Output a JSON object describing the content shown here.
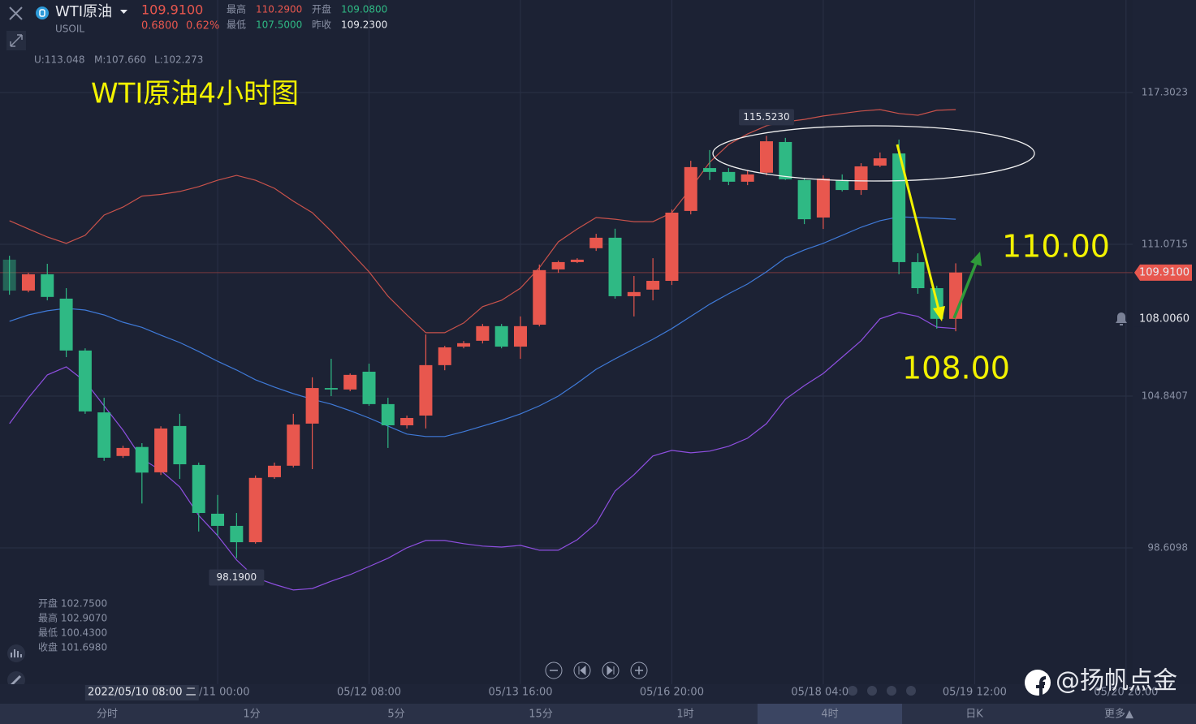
{
  "header": {
    "name": "WTI原油",
    "symbol": "USOIL",
    "price": "109.9100",
    "change": "0.6800",
    "change_pct": "0.62%",
    "stats": [
      [
        "最高",
        "110.2900"
      ],
      [
        "开盘",
        "109.0800"
      ],
      [
        "最低",
        "107.5000"
      ],
      [
        "昨收",
        "109.2300"
      ]
    ]
  },
  "chart_data": {
    "type": "candlestick",
    "title": "WTI原油4小时图",
    "up_color": "#e8574e",
    "down_color": "#2fb984",
    "xlim": [
      -0.5,
      59.35
    ],
    "ylim": [
      93.01,
      121.1
    ],
    "yticks": [
      117.3023,
      111.0715,
      104.8407,
      98.6098
    ],
    "grid": true,
    "xticks": [
      {
        "value": 11,
        "label": "05/11 00:00"
      },
      {
        "value": 19,
        "label": "05/12 08:00"
      },
      {
        "value": 27,
        "label": "05/13 16:00"
      },
      {
        "value": 35,
        "label": "05/16 20:00"
      },
      {
        "value": 43,
        "label": "05/18 04:00"
      },
      {
        "value": 51,
        "label": "05/19 12:00"
      },
      {
        "value": 59,
        "label": "05/20 20:00"
      }
    ],
    "candles": {
      "open": [
        110.44,
        109.17,
        109.84,
        108.84,
        106.71,
        104.17,
        102.38,
        102.75,
        101.71,
        103.61,
        102.01,
        100.01,
        99.51,
        98.84,
        101.51,
        101.98,
        103.71,
        105.17,
        105.11,
        105.84,
        104.51,
        103.64,
        104.04,
        106.11,
        106.87,
        107.11,
        107.71,
        106.87,
        107.77,
        110.04,
        110.34,
        110.91,
        111.34,
        108.94,
        109.21,
        109.57,
        112.44,
        114.2,
        114.04,
        113.64,
        114.01,
        115.27,
        113.71,
        112.17,
        113.71,
        113.3,
        114.3,
        114.8,
        110.34,
        109.27,
        108.01
      ],
      "high": [
        110.6,
        109.9,
        110.27,
        109.27,
        106.8,
        104.77,
        102.8,
        102.907,
        103.6,
        104.11,
        102.11,
        100.78,
        100.04,
        101.58,
        102.11,
        104.11,
        105.61,
        106.37,
        105.77,
        106.17,
        104.77,
        104.04,
        107.37,
        106.9,
        107.1,
        107.8,
        107.8,
        108.11,
        110.24,
        110.4,
        110.5,
        111.5,
        111.71,
        109.77,
        110.5,
        112.5,
        114.5,
        114.94,
        114.2,
        114.1,
        115.523,
        115.44,
        113.8,
        113.9,
        113.94,
        114.4,
        114.84,
        115.37,
        110.7,
        109.37,
        110.29
      ],
      "low": [
        109.0,
        109.1,
        108.77,
        106.44,
        104.11,
        102.18,
        102.3,
        100.43,
        101.6,
        101.44,
        99.28,
        99.11,
        98.19,
        98.78,
        101.44,
        101.91,
        101.84,
        104.84,
        105.04,
        104.44,
        102.71,
        103.51,
        103.51,
        105.9,
        106.8,
        107.0,
        106.8,
        106.37,
        107.7,
        109.9,
        110.3,
        110.8,
        108.84,
        108.11,
        108.77,
        109.4,
        112.3,
        113.71,
        113.5,
        113.5,
        113.9,
        113.71,
        111.9,
        111.7,
        113.24,
        113.1,
        114.24,
        109.84,
        109.04,
        107.61,
        107.5
      ],
      "close": [
        109.17,
        109.84,
        108.91,
        106.71,
        104.21,
        102.31,
        102.71,
        101.698,
        103.51,
        102.04,
        100.04,
        99.51,
        98.84,
        101.48,
        101.98,
        103.67,
        105.17,
        105.11,
        105.71,
        104.51,
        103.64,
        103.94,
        106.11,
        106.84,
        107.01,
        107.71,
        106.87,
        107.71,
        110.01,
        110.34,
        110.44,
        111.34,
        108.94,
        109.11,
        109.57,
        112.37,
        114.24,
        114.04,
        113.64,
        113.94,
        115.3,
        113.74,
        112.1,
        113.77,
        113.3,
        114.27,
        114.6,
        110.34,
        109.27,
        108.01,
        109.91
      ]
    },
    "bands": [
      {
        "label": "U:113.048",
        "color": "#c9524b",
        "values": [
          112.04,
          111.7,
          111.37,
          111.11,
          111.44,
          112.27,
          112.6,
          113.05,
          113.12,
          113.24,
          113.44,
          113.7,
          113.9,
          113.7,
          113.37,
          112.84,
          112.37,
          111.61,
          110.77,
          109.94,
          108.94,
          108.17,
          107.44,
          107.44,
          107.84,
          108.51,
          108.77,
          109.27,
          110.11,
          111.17,
          111.7,
          112.17,
          112.1,
          112.0,
          112.0,
          112.37,
          113.37,
          114.44,
          115.17,
          115.6,
          115.94,
          116.1,
          116.2,
          116.34,
          116.44,
          116.54,
          116.6,
          116.44,
          116.37,
          116.57,
          116.6
        ]
      },
      {
        "label": "M:107.660",
        "color": "#3f7ad8",
        "values": [
          107.91,
          108.17,
          108.34,
          108.44,
          108.37,
          108.17,
          107.87,
          107.66,
          107.34,
          107.04,
          106.67,
          106.27,
          105.91,
          105.51,
          105.21,
          104.94,
          104.71,
          104.51,
          104.24,
          103.94,
          103.61,
          103.28,
          103.18,
          103.18,
          103.38,
          103.61,
          103.84,
          104.11,
          104.44,
          104.84,
          105.37,
          105.94,
          106.37,
          106.77,
          107.17,
          107.61,
          108.11,
          108.61,
          109.04,
          109.44,
          109.94,
          110.51,
          110.84,
          111.11,
          111.44,
          111.77,
          112.04,
          112.2,
          112.17,
          112.14,
          112.1
        ]
      },
      {
        "label": "L:102.273",
        "color": "#8e4fe0",
        "values": [
          103.71,
          104.77,
          105.71,
          106.04,
          105.44,
          104.44,
          103.44,
          102.27,
          101.78,
          101.11,
          99.94,
          99.11,
          98.11,
          97.38,
          97.11,
          96.88,
          96.94,
          97.24,
          97.51,
          97.84,
          98.18,
          98.61,
          98.91,
          98.91,
          98.78,
          98.68,
          98.64,
          98.71,
          98.51,
          98.51,
          98.94,
          99.61,
          100.94,
          101.61,
          102.38,
          102.61,
          102.51,
          102.58,
          102.78,
          103.11,
          103.71,
          104.71,
          105.27,
          105.77,
          106.44,
          107.11,
          108.01,
          108.27,
          108.11,
          107.67,
          107.61
        ]
      }
    ],
    "last_price": {
      "value": 109.91,
      "label": "109.9100"
    },
    "alert_price": {
      "value": 108.006,
      "label": "108.0060"
    },
    "extremes": [
      {
        "index": 40,
        "value": 115.523,
        "label": "115.5230"
      },
      {
        "index": 12,
        "value": 98.19,
        "label": "98.1900"
      }
    ],
    "crosshair": {
      "index": 7,
      "label": "2022/05/10 08:00 二"
    },
    "ohlc_panel": [
      "开盘 102.7500",
      "最高 102.9070",
      "最低 100.4300",
      "收盘 101.6980"
    ],
    "annotations": [
      "110.00",
      "108.00"
    ]
  },
  "timeframes": [
    "分时",
    "1分",
    "5分",
    "15分",
    "1时",
    "4时",
    "日K",
    "更多▲"
  ],
  "selected_timeframe": 5,
  "watermark": "@扬帆点金"
}
